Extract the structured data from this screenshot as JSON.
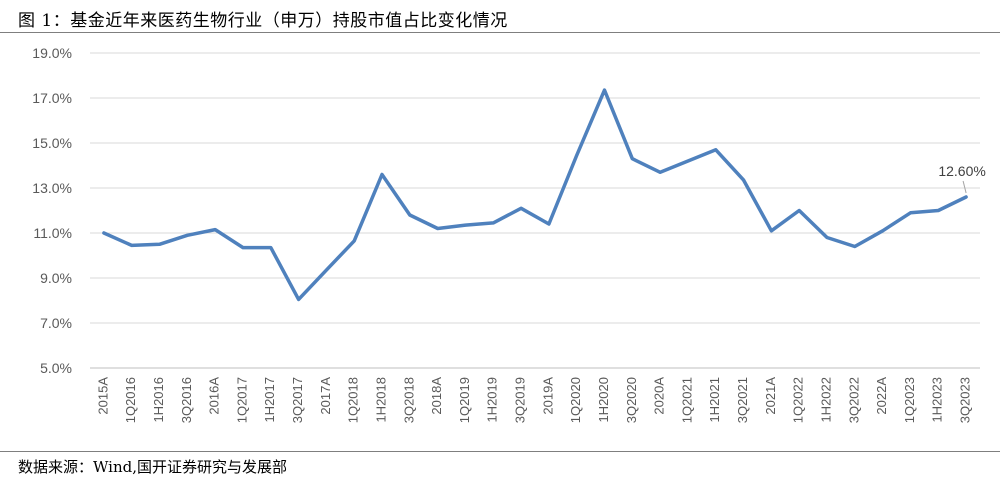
{
  "figure": {
    "title": "图 1：基金近年来医药生物行业（申万）持股市值占比变化情况",
    "source": "数据来源：Wind,国开证券研究与发展部"
  },
  "chart_data": {
    "type": "line",
    "title": "",
    "xlabel": "",
    "ylabel": "",
    "ylim": [
      5.0,
      19.0
    ],
    "yticks": [
      5.0,
      7.0,
      9.0,
      11.0,
      13.0,
      15.0,
      17.0,
      19.0
    ],
    "ytick_labels": [
      "5.0%",
      "7.0%",
      "9.0%",
      "11.0%",
      "13.0%",
      "15.0%",
      "17.0%",
      "19.0%"
    ],
    "grid": "horizontal",
    "legend": "none",
    "line_color": "#4F81BD",
    "categories": [
      "2015A",
      "1Q2016",
      "1H2016",
      "3Q2016",
      "2016A",
      "1Q2017",
      "1H2017",
      "3Q2017",
      "2017A",
      "1Q2018",
      "1H2018",
      "3Q2018",
      "2018A",
      "1Q2019",
      "1H2019",
      "3Q2019",
      "2019A",
      "1Q2020",
      "1H2020",
      "3Q2020",
      "2020A",
      "1Q2021",
      "1H2021",
      "3Q2021",
      "2021A",
      "1Q2022",
      "1H2022",
      "3Q2022",
      "2022A",
      "1Q2023",
      "1H2023",
      "3Q2023"
    ],
    "series": [
      {
        "values": [
          11.0,
          10.45,
          10.5,
          10.9,
          11.15,
          10.35,
          10.35,
          8.05,
          9.35,
          10.65,
          13.6,
          11.8,
          11.2,
          11.35,
          11.45,
          12.1,
          11.4,
          14.45,
          17.35,
          14.3,
          13.7,
          14.2,
          14.7,
          13.35,
          11.1,
          12.0,
          10.8,
          10.4,
          11.1,
          11.9,
          12.0,
          12.6
        ]
      }
    ],
    "annotations": [
      {
        "category": "3Q2023",
        "text": "12.60%"
      }
    ]
  }
}
